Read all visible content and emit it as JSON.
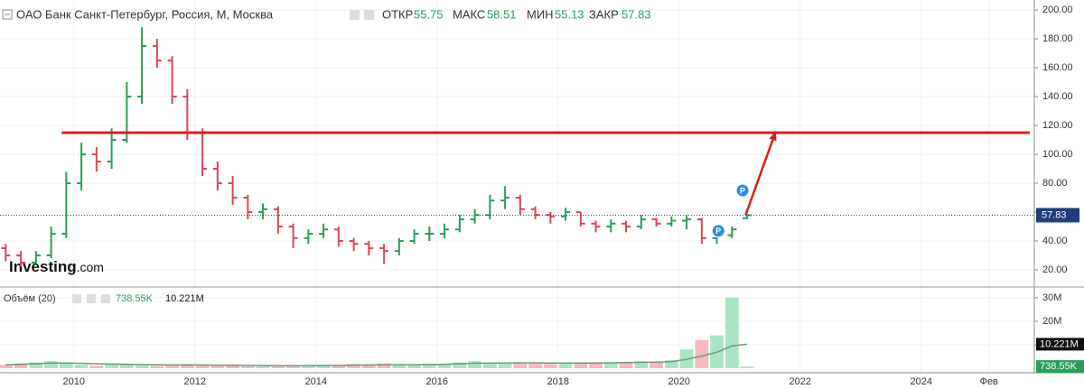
{
  "chart_data": {
    "type": "ohlc",
    "title": "ОАО Банк Санкт-Петербург, Россия, М, Москва",
    "open_label": "ОТКР",
    "high_label": "МАКС",
    "low_label": "МИН",
    "close_label": "ЗАКР",
    "up_color": "#2a9d5c",
    "down_color": "#d9465a",
    "x": [
      2008.75,
      2009,
      2009.25,
      2009.5,
      2009.75,
      2010,
      2010.25,
      2010.5,
      2010.75,
      2011,
      2011.25,
      2011.5,
      2011.75,
      2012,
      2012.25,
      2012.5,
      2012.75,
      2013,
      2013.25,
      2013.5,
      2013.75,
      2014,
      2014.25,
      2014.5,
      2014.75,
      2015,
      2015.25,
      2015.5,
      2015.75,
      2016,
      2016.25,
      2016.5,
      2016.75,
      2017,
      2017.25,
      2017.5,
      2017.75,
      2018,
      2018.25,
      2018.5,
      2018.75,
      2019,
      2019.25,
      2019.5,
      2019.75,
      2020,
      2020.25,
      2020.5,
      2020.75,
      2021
    ],
    "open": [
      35,
      30,
      25,
      30,
      45,
      80,
      100,
      95,
      110,
      140,
      175,
      165,
      140,
      115,
      90,
      80,
      70,
      60,
      62,
      50,
      42,
      45,
      48,
      40,
      38,
      35,
      33,
      40,
      45,
      45,
      48,
      55,
      58,
      68,
      70,
      62,
      58,
      57,
      60,
      52,
      50,
      52,
      50,
      55,
      52,
      54,
      55,
      42,
      44,
      55.75
    ],
    "high": [
      38,
      33,
      33,
      50,
      88,
      108,
      105,
      118,
      150,
      188,
      180,
      168,
      145,
      118,
      95,
      85,
      72,
      66,
      64,
      52,
      48,
      52,
      50,
      42,
      40,
      38,
      42,
      48,
      50,
      52,
      58,
      62,
      72,
      78,
      72,
      64,
      60,
      63,
      60,
      54,
      55,
      54,
      58,
      56,
      57,
      58,
      56,
      46,
      50,
      58.51
    ],
    "low": [
      26,
      22,
      24,
      28,
      42,
      75,
      88,
      90,
      108,
      135,
      160,
      135,
      110,
      85,
      75,
      65,
      55,
      55,
      45,
      35,
      38,
      42,
      36,
      33,
      30,
      24,
      30,
      38,
      40,
      42,
      46,
      52,
      55,
      62,
      58,
      55,
      52,
      54,
      50,
      46,
      46,
      46,
      48,
      50,
      50,
      48,
      38,
      38,
      42,
      55.13
    ],
    "close": [
      30,
      25,
      30,
      45,
      80,
      100,
      95,
      110,
      140,
      175,
      165,
      140,
      115,
      90,
      80,
      70,
      60,
      62,
      50,
      42,
      45,
      48,
      40,
      38,
      35,
      33,
      40,
      45,
      45,
      48,
      55,
      58,
      68,
      70,
      62,
      58,
      57,
      60,
      52,
      50,
      52,
      50,
      55,
      52,
      54,
      55,
      42,
      44,
      48,
      57.83
    ],
    "xlim": [
      2008.78,
      2025.87
    ],
    "xticks": [
      2010,
      2012,
      2014,
      2016,
      2018,
      2020,
      2022,
      2024,
      {
        "value": 2025.12,
        "label": "Фев"
      }
    ],
    "ylim": [
      8.1,
      206.9
    ],
    "yticks": [
      {
        "value": 20,
        "label": "20.00"
      },
      {
        "value": 40,
        "label": "40.00"
      },
      {
        "value": 60,
        "label": "60.00"
      },
      {
        "value": 80,
        "label": "80.00"
      },
      {
        "value": 100,
        "label": "100.00"
      },
      {
        "value": 120,
        "label": "120.00"
      },
      {
        "value": 140,
        "label": "140.00"
      },
      {
        "value": 160,
        "label": "160.00"
      },
      {
        "value": 180,
        "label": "180.00"
      },
      {
        "value": 200,
        "label": "200.00"
      }
    ],
    "grid": true,
    "level_line": {
      "value": 115,
      "start": 2009.8,
      "color": "#d81f1f"
    },
    "arrow": {
      "x": [
        2021.1,
        2021.6
      ],
      "y": [
        58,
        116
      ],
      "color": "#d81f1f"
    },
    "markers": [
      {
        "x": 2020.65,
        "y": 47,
        "label": "P"
      },
      {
        "x": 2021.05,
        "y": 75,
        "label": "P"
      }
    ],
    "logo": "Investing",
    "logo_suffix": ".com",
    "volume": {
      "name": "Объём (20)",
      "values": [
        1500000,
        2000000,
        2500000,
        3000000,
        2000000,
        1500000,
        1200000,
        1500000,
        1800000,
        1200000,
        1000000,
        1500000,
        1800000,
        1200000,
        1000000,
        1000000,
        800000,
        900000,
        1000000,
        1200000,
        1000000,
        1500000,
        1200000,
        1800000,
        1500000,
        2000000,
        1500000,
        1200000,
        2000000,
        1800000,
        2500000,
        3000000,
        2500000,
        2000000,
        2200000,
        2000000,
        1800000,
        2500000,
        2200000,
        2000000,
        2500000,
        2800000,
        3000000,
        2500000,
        3500000,
        8000000,
        12000000,
        14000000,
        30000000,
        738550
      ],
      "ma": [
        1500000,
        1700000,
        1900000,
        2200000,
        2200000,
        2100000,
        1900000,
        1800000,
        1700000,
        1600000,
        1500000,
        1400000,
        1400000,
        1400000,
        1300000,
        1300000,
        1200000,
        1200000,
        1100000,
        1100000,
        1100000,
        1200000,
        1200000,
        1300000,
        1400000,
        1500000,
        1500000,
        1500000,
        1600000,
        1700000,
        1900000,
        2100000,
        2200000,
        2200000,
        2300000,
        2300000,
        2200000,
        2200000,
        2200000,
        2200000,
        2300000,
        2400000,
        2500000,
        2600000,
        2800000,
        3800000,
        5200000,
        6800000,
        9500000,
        10221000
      ],
      "ma_color": "#6f9a80",
      "up_color": "#a9e5c4",
      "down_color": "#f6b9bd",
      "ylim": [
        0,
        33800000
      ],
      "yticks": [
        {
          "value": 10000000,
          "label": "10M"
        },
        {
          "value": 20000000,
          "label": "20M"
        },
        {
          "value": 30000000,
          "label": "30M"
        }
      ],
      "badges": [
        {
          "value": 738550,
          "label": "738.55K"
        },
        {
          "value": 10221000,
          "label": "10.221M"
        }
      ]
    }
  }
}
